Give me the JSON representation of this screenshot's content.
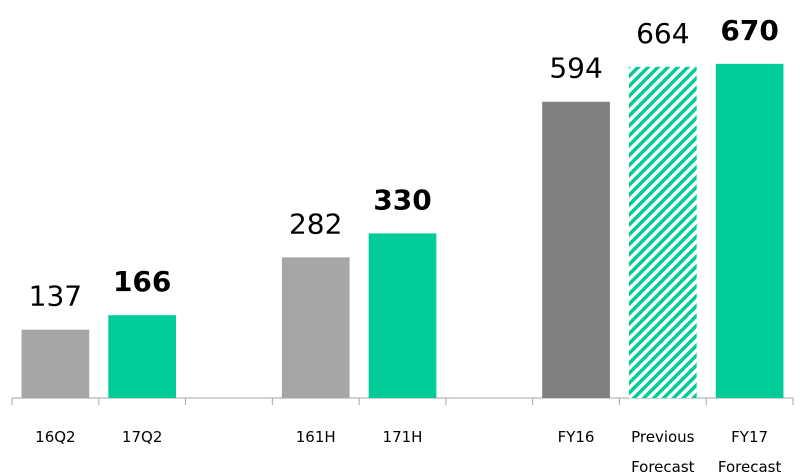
{
  "chart_data": {
    "type": "bar",
    "categories": [
      "16Q2",
      "17Q2",
      null,
      "161H",
      "171H",
      null,
      "FY16",
      "Previous Forecast",
      "FY17 Forecast"
    ],
    "values": [
      137,
      166,
      null,
      282,
      330,
      null,
      594,
      664,
      670
    ],
    "colors": [
      "#a6a6a6",
      "#00cc99",
      null,
      "#a6a6a6",
      "#00cc99",
      null,
      "#808080",
      "#00cc99",
      "#00cc99"
    ],
    "patterns": [
      "solid",
      "solid",
      null,
      "solid",
      "solid",
      null,
      "solid",
      "hatched",
      "solid"
    ],
    "bold_labels": [
      false,
      true,
      null,
      false,
      true,
      null,
      false,
      false,
      true
    ],
    "ylim": [
      0,
      800
    ]
  }
}
